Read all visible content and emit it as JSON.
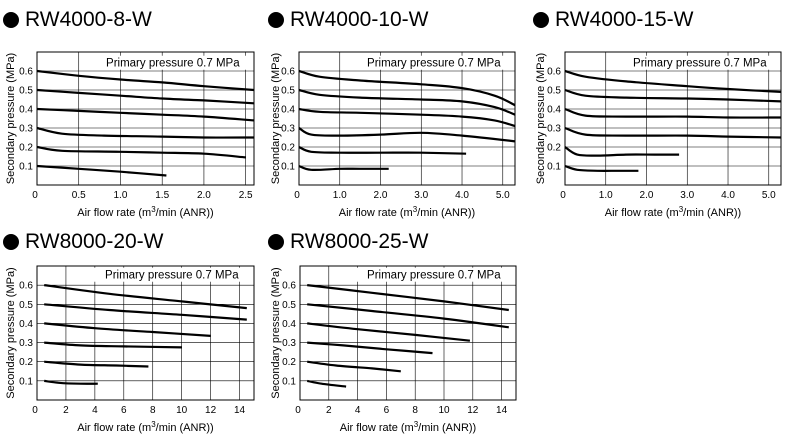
{
  "chart_data": [
    {
      "type": "line",
      "title": "RW4000-8-W",
      "annotation": "Primary pressure 0.7 MPa",
      "xlabel": "Air flow rate (m3/min (ANR))",
      "xlabel_parts": [
        "Air flow rate (m",
        "3",
        "/min (ANR))"
      ],
      "ylabel": "Secondary pressure (MPa)",
      "xlim": [
        0,
        2.6
      ],
      "ylim": [
        0,
        0.7
      ],
      "x_ticks": [
        0.5,
        1.0,
        1.5,
        2.0,
        2.5
      ],
      "x_tick_labels": [
        "0.5",
        "1.0",
        "1.5",
        "2.0",
        "2.5"
      ],
      "y_ticks": [
        0.1,
        0.2,
        0.3,
        0.4,
        0.5,
        0.6
      ],
      "y_tick_labels": [
        "0.1",
        "0.2",
        "0.3",
        "0.4",
        "0.5",
        "0.6"
      ],
      "origin_label": "0",
      "series": [
        {
          "x": [
            0,
            0.5,
            1.0,
            1.5,
            2.0,
            2.6
          ],
          "y": [
            0.6,
            0.575,
            0.555,
            0.54,
            0.52,
            0.5
          ]
        },
        {
          "x": [
            0,
            0.5,
            1.0,
            1.5,
            2.0,
            2.6
          ],
          "y": [
            0.5,
            0.485,
            0.47,
            0.455,
            0.445,
            0.43
          ]
        },
        {
          "x": [
            0,
            0.5,
            1.0,
            1.5,
            2.0,
            2.6
          ],
          "y": [
            0.4,
            0.39,
            0.38,
            0.37,
            0.36,
            0.34
          ]
        },
        {
          "x": [
            0,
            0.3,
            0.8,
            1.5,
            2.0,
            2.6
          ],
          "y": [
            0.3,
            0.27,
            0.26,
            0.255,
            0.25,
            0.25
          ]
        },
        {
          "x": [
            0,
            0.3,
            1.0,
            1.5,
            2.0,
            2.5
          ],
          "y": [
            0.2,
            0.18,
            0.175,
            0.17,
            0.165,
            0.145
          ]
        },
        {
          "x": [
            0,
            0.5,
            1.0,
            1.55
          ],
          "y": [
            0.1,
            0.085,
            0.07,
            0.05
          ]
        }
      ]
    },
    {
      "type": "line",
      "title": "RW4000-10-W",
      "annotation": "Primary pressure 0.7 MPa",
      "xlabel": "Air flow rate (m3/min (ANR))",
      "xlabel_parts": [
        "Air flow rate (m",
        "3",
        "/min (ANR))"
      ],
      "ylabel": "Secondary pressure (MPa)",
      "xlim": [
        0,
        5.3
      ],
      "ylim": [
        0,
        0.7
      ],
      "x_ticks": [
        1.0,
        2.0,
        3.0,
        4.0,
        5.0
      ],
      "x_tick_labels": [
        "1.0",
        "2.0",
        "3.0",
        "4.0",
        "5.0"
      ],
      "y_ticks": [
        0.1,
        0.2,
        0.3,
        0.4,
        0.5,
        0.6
      ],
      "y_tick_labels": [
        "0.1",
        "0.2",
        "0.3",
        "0.4",
        "0.5",
        "0.6"
      ],
      "origin_label": "0",
      "series": [
        {
          "x": [
            0,
            0.5,
            1.5,
            3.0,
            4.0,
            4.8,
            5.3
          ],
          "y": [
            0.6,
            0.57,
            0.55,
            0.53,
            0.51,
            0.47,
            0.42
          ]
        },
        {
          "x": [
            0,
            0.5,
            1.5,
            3.0,
            4.0,
            4.8,
            5.3
          ],
          "y": [
            0.5,
            0.475,
            0.46,
            0.45,
            0.44,
            0.41,
            0.37
          ]
        },
        {
          "x": [
            0,
            0.5,
            1.5,
            3.0,
            4.0,
            4.8,
            5.3
          ],
          "y": [
            0.4,
            0.385,
            0.38,
            0.37,
            0.36,
            0.34,
            0.31
          ]
        },
        {
          "x": [
            0,
            0.3,
            1.0,
            2.0,
            3.0,
            4.0,
            5.3
          ],
          "y": [
            0.3,
            0.265,
            0.26,
            0.265,
            0.275,
            0.26,
            0.23
          ]
        },
        {
          "x": [
            0,
            0.3,
            1.0,
            2.0,
            3.0,
            4.1
          ],
          "y": [
            0.2,
            0.175,
            0.17,
            0.17,
            0.17,
            0.165
          ]
        },
        {
          "x": [
            0,
            0.3,
            1.0,
            1.5,
            2.2
          ],
          "y": [
            0.1,
            0.08,
            0.085,
            0.085,
            0.085
          ]
        }
      ]
    },
    {
      "type": "line",
      "title": "RW4000-15-W",
      "annotation": "Primary pressure 0.7 MPa",
      "xlabel": "Air flow rate (m3/min (ANR))",
      "xlabel_parts": [
        "Air flow rate (m",
        "3",
        "/min (ANR))"
      ],
      "ylabel": "Secondary pressure (MPa)",
      "xlim": [
        0,
        5.3
      ],
      "ylim": [
        0,
        0.7
      ],
      "x_ticks": [
        1.0,
        2.0,
        3.0,
        4.0,
        5.0
      ],
      "x_tick_labels": [
        "1.0",
        "2.0",
        "3.0",
        "4.0",
        "5.0"
      ],
      "y_ticks": [
        0.1,
        0.2,
        0.3,
        0.4,
        0.5,
        0.6
      ],
      "y_tick_labels": [
        "0.1",
        "0.2",
        "0.3",
        "0.4",
        "0.5",
        "0.6"
      ],
      "origin_label": "0",
      "series": [
        {
          "x": [
            0,
            0.5,
            1.5,
            3.0,
            4.0,
            5.3
          ],
          "y": [
            0.6,
            0.57,
            0.545,
            0.52,
            0.505,
            0.49
          ]
        },
        {
          "x": [
            0,
            0.5,
            1.5,
            3.0,
            4.0,
            5.3
          ],
          "y": [
            0.5,
            0.47,
            0.46,
            0.455,
            0.45,
            0.44
          ]
        },
        {
          "x": [
            0,
            0.5,
            1.5,
            3.0,
            4.0,
            5.3
          ],
          "y": [
            0.4,
            0.365,
            0.36,
            0.36,
            0.355,
            0.355
          ]
        },
        {
          "x": [
            0,
            0.5,
            1.5,
            3.0,
            4.0,
            5.3
          ],
          "y": [
            0.3,
            0.265,
            0.26,
            0.26,
            0.255,
            0.25
          ]
        },
        {
          "x": [
            0,
            0.3,
            0.8,
            1.5,
            2.2,
            2.8
          ],
          "y": [
            0.2,
            0.16,
            0.155,
            0.16,
            0.16,
            0.16
          ]
        },
        {
          "x": [
            0,
            0.3,
            0.8,
            1.3,
            1.8
          ],
          "y": [
            0.1,
            0.08,
            0.075,
            0.075,
            0.075
          ]
        }
      ]
    },
    {
      "type": "line",
      "title": "RW8000-20-W",
      "annotation": "Primary pressure 0.7 MPa",
      "xlabel": "Air flow rate (m3/min (ANR))",
      "xlabel_parts": [
        "Air flow rate (m",
        "3",
        "/min (ANR))"
      ],
      "ylabel": "Secondary pressure (MPa)",
      "xlim": [
        0,
        15
      ],
      "ylim": [
        0,
        0.7
      ],
      "x_ticks": [
        2,
        4,
        6,
        8,
        10,
        12,
        14
      ],
      "x_tick_labels": [
        "2",
        "4",
        "6",
        "8",
        "10",
        "12",
        "14"
      ],
      "y_ticks": [
        0.1,
        0.2,
        0.3,
        0.4,
        0.5,
        0.6
      ],
      "y_tick_labels": [
        "0.1",
        "0.2",
        "0.3",
        "0.4",
        "0.5",
        "0.6"
      ],
      "origin_label": "0",
      "series": [
        {
          "x": [
            0.5,
            5,
            10,
            14.5
          ],
          "y": [
            0.6,
            0.555,
            0.515,
            0.48
          ]
        },
        {
          "x": [
            0.5,
            5,
            10,
            14.5
          ],
          "y": [
            0.5,
            0.47,
            0.445,
            0.42
          ]
        },
        {
          "x": [
            0.5,
            4,
            8,
            12
          ],
          "y": [
            0.4,
            0.375,
            0.355,
            0.335
          ]
        },
        {
          "x": [
            0.5,
            3,
            6,
            10
          ],
          "y": [
            0.3,
            0.285,
            0.28,
            0.275
          ]
        },
        {
          "x": [
            0.5,
            3,
            5.5,
            7.7
          ],
          "y": [
            0.2,
            0.185,
            0.18,
            0.175
          ]
        },
        {
          "x": [
            0.5,
            1.5,
            3,
            4.2
          ],
          "y": [
            0.1,
            0.09,
            0.085,
            0.085
          ]
        }
      ]
    },
    {
      "type": "line",
      "title": "RW8000-25-W",
      "annotation": "Primary pressure 0.7 MPa",
      "xlabel": "Air flow rate (m3/min (ANR))",
      "xlabel_parts": [
        "Air flow rate (m",
        "3",
        "/min (ANR))"
      ],
      "ylabel": "Secondary pressure (MPa)",
      "xlim": [
        0,
        15
      ],
      "ylim": [
        0,
        0.7
      ],
      "x_ticks": [
        2,
        4,
        6,
        8,
        10,
        12,
        14
      ],
      "x_tick_labels": [
        "2",
        "4",
        "6",
        "8",
        "10",
        "12",
        "14"
      ],
      "y_ticks": [
        0.1,
        0.2,
        0.3,
        0.4,
        0.5,
        0.6
      ],
      "y_tick_labels": [
        "0.1",
        "0.2",
        "0.3",
        "0.4",
        "0.5",
        "0.6"
      ],
      "origin_label": "0",
      "series": [
        {
          "x": [
            0.5,
            5,
            10,
            14.5
          ],
          "y": [
            0.6,
            0.56,
            0.515,
            0.47
          ]
        },
        {
          "x": [
            0.5,
            5,
            10,
            14.5
          ],
          "y": [
            0.5,
            0.465,
            0.425,
            0.38
          ]
        },
        {
          "x": [
            0.5,
            4,
            8,
            11.8
          ],
          "y": [
            0.4,
            0.37,
            0.34,
            0.31
          ]
        },
        {
          "x": [
            0.5,
            3,
            6,
            9.2
          ],
          "y": [
            0.3,
            0.285,
            0.265,
            0.245
          ]
        },
        {
          "x": [
            0.5,
            2.5,
            5,
            7.0
          ],
          "y": [
            0.2,
            0.18,
            0.165,
            0.15
          ]
        },
        {
          "x": [
            0.5,
            1.5,
            3.2
          ],
          "y": [
            0.1,
            0.085,
            0.07
          ]
        }
      ]
    }
  ]
}
